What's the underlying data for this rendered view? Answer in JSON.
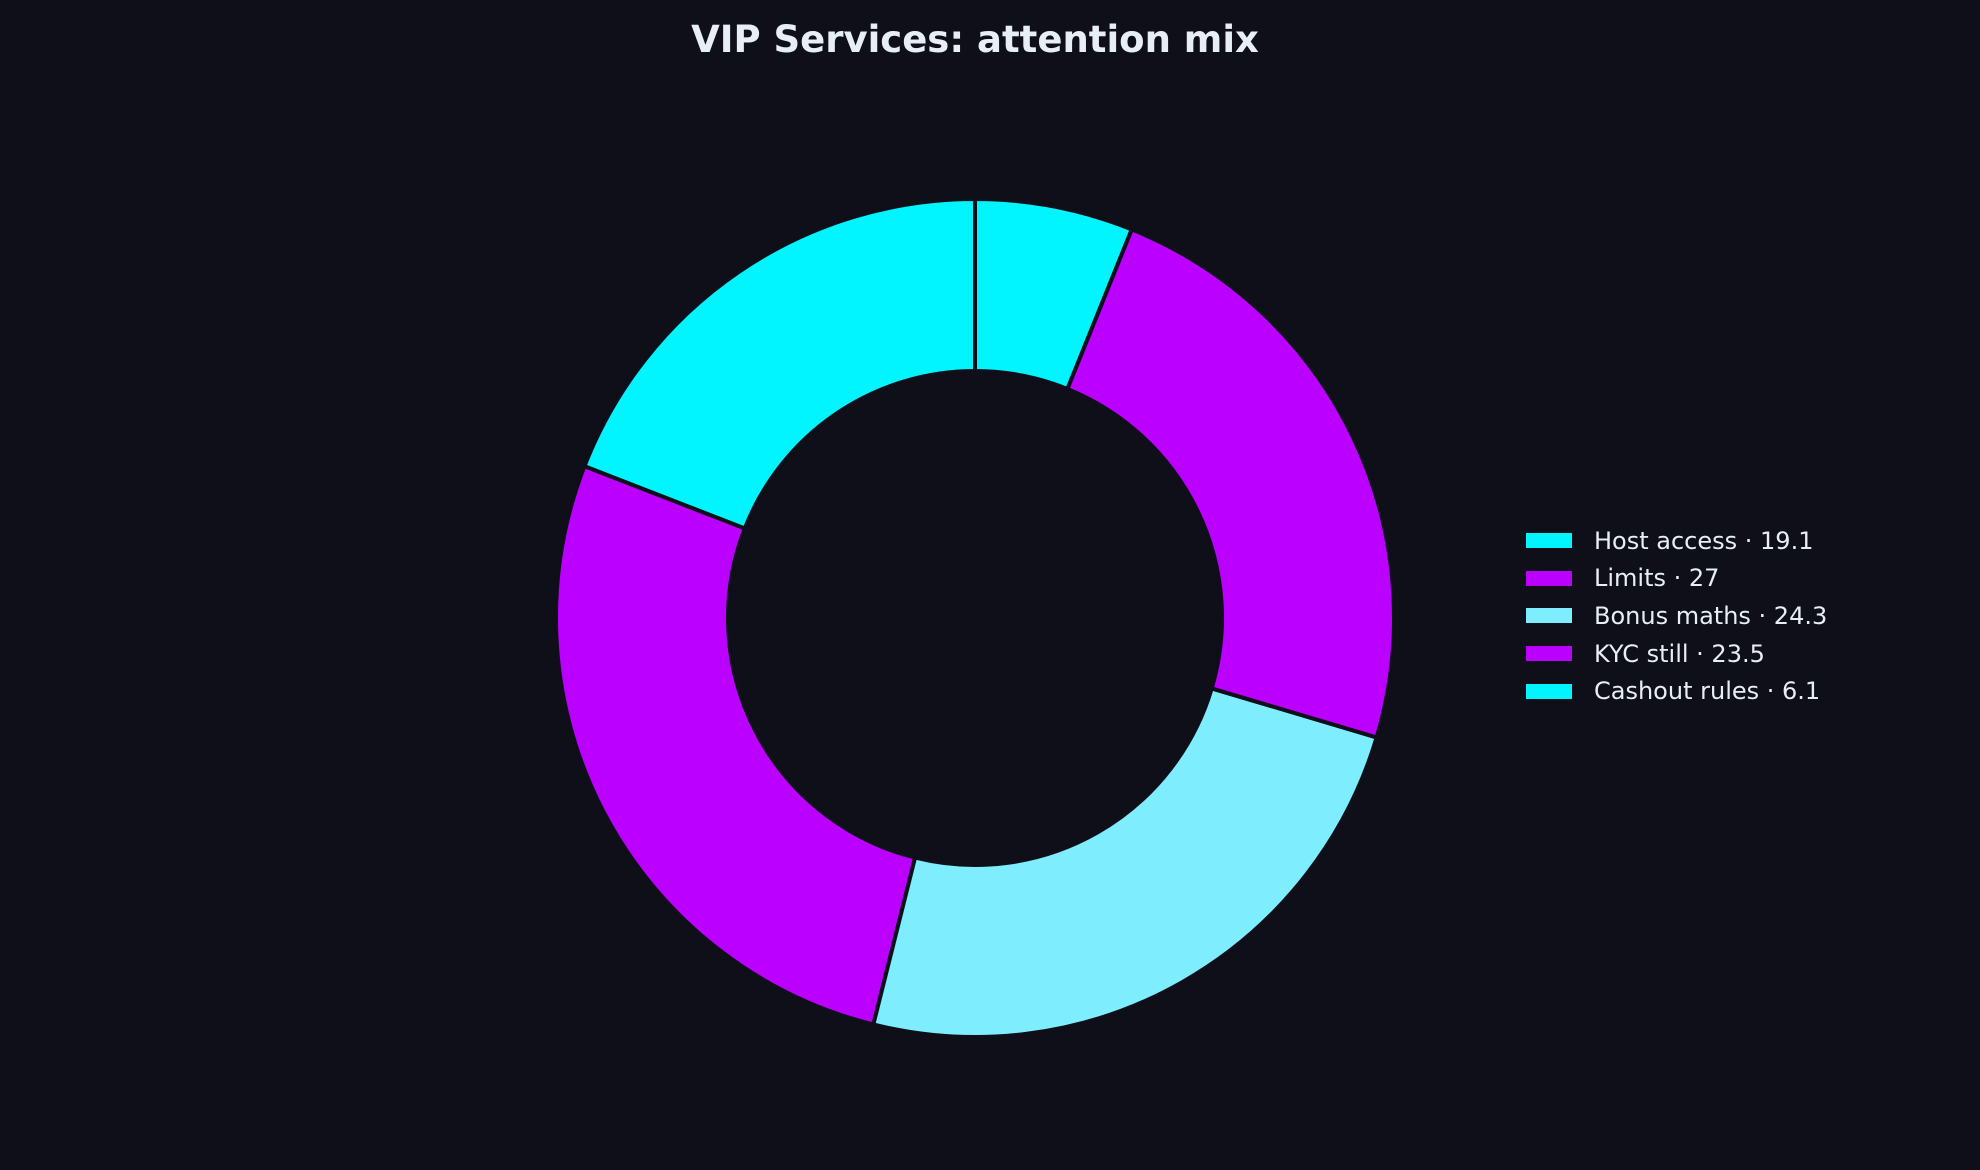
{
  "chart_data": {
    "type": "pie",
    "title": "VIP Services: attention mix",
    "donut": true,
    "start_angle_deg": 90,
    "direction": "counterclockwise",
    "legend_position": "right",
    "slices": [
      {
        "label": "Host access",
        "value": 19.1,
        "legend_text": "Host access · 19.1",
        "color": "#00f5ff"
      },
      {
        "label": "Limits",
        "value": 27,
        "legend_text": "Limits · 27",
        "color": "#bb00ff"
      },
      {
        "label": "Bonus maths",
        "value": 24.3,
        "legend_text": "Bonus maths · 24.3",
        "color": "#7eeeff"
      },
      {
        "label": "KYC still",
        "value": 23.5,
        "legend_text": "KYC still · 23.5",
        "color": "#bb00ff"
      },
      {
        "label": "Cashout rules",
        "value": 6.1,
        "legend_text": "Cashout rules · 6.1",
        "color": "#00f5ff"
      }
    ]
  },
  "colors": {
    "background": "#0f0f1a",
    "text": "#e8eef5",
    "slice_edge": "#0f0f1a"
  }
}
